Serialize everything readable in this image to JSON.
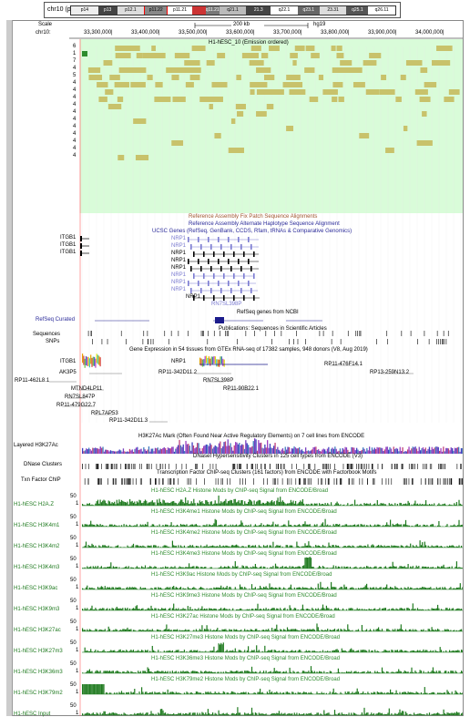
{
  "ideogram": {
    "label": "chr10 (p11.22)",
    "bands": [
      "p14",
      "p13",
      "p12.1",
      "p11.22",
      "p11.21",
      "q11.21",
      "q21.1",
      "21.3",
      "q22.1",
      "q23.1",
      "23.31",
      "q25.1",
      "q26.11"
    ],
    "highlight_band": "p11.22"
  },
  "ruler": {
    "scale_label": "Scale",
    "chrom_label": "chr10:",
    "scale_text": "200 kb",
    "assembly": "hg19",
    "positions": [
      "33,300,000|",
      "33,400,000|",
      "33,500,000|",
      "33,600,000|",
      "33,700,000|",
      "33,800,000|",
      "33,900,000|",
      "34,000,000|"
    ]
  },
  "hmm_track": {
    "title": "H1-hESC_10 (Emission ordered)",
    "state_labels": [
      "6",
      "1",
      "7",
      "4",
      "5",
      "4",
      "4",
      "4",
      "4",
      "4",
      "4",
      "4",
      "4",
      "4",
      "4",
      "4"
    ],
    "background_color": "#d9fcd9",
    "block_color": "#c8c26b"
  },
  "tracks": {
    "fix_patch": "Reference Assembly Fix Patch Sequence Alignments",
    "alt_haplo": "Reference Assembly Alternate Haplotype Sequence Alignment",
    "ucsc_genes": "UCSC Genes (RefSeq, GenBank, CCDS, Rfam, tRNAs & Comparative Genomics)",
    "itgb1_labels": [
      "ITGB1",
      "ITGB1",
      "ITGB1"
    ],
    "nrp1_labels": [
      "NRP1",
      "NRP1",
      "NRP1",
      "NRP1",
      "NRP1",
      "NRP1",
      "NRP1",
      "NRP1",
      "NRP1"
    ],
    "rn7sl398p": "RN7SL398P",
    "refseq_curated": "RefSeq Curated",
    "refseq_title": "RefSeq genes from NCBI",
    "publications": "Publications: Sequences in Scientific Articles",
    "sequences": "Sequences",
    "snps": "SNPs",
    "gtex": "Gene Expression in 54 tissues from GTEx RNA-seq of 17382 samples, 948 donors (V8, Aug 2019)",
    "gtex_genes": [
      "ITGB1",
      "NRP1"
    ],
    "misc_genes": [
      "AK3P5",
      "RP11-342D11.2",
      "RP11-476F14.1",
      "RP13-259N13.2",
      "RP11-462L8.1",
      "RN7SL398P",
      "RP11-90B22.1",
      "MTND4LP11",
      "RN7SL847P",
      "RP11-479G22.7",
      "RPL7AP53",
      "RP11-342D11.3"
    ],
    "layered_h3k27ac": "Layered H3K27Ac",
    "h3k27ac_title": "H3K27Ac Mark (Often Found Near Active Regulatory Elements) on 7 cell lines from ENCODE",
    "dnase": "DNase Clusters",
    "dnase_title": "DNaseI Hypersensitivity Clusters in 125 cell types from ENCODE (V3)",
    "txn": "Txn Factor ChIP",
    "txn_title": "Transcription Factor ChIP-seq Clusters (161 factors) from ENCODE with Factorbook Motifs"
  },
  "histone_tracks": [
    {
      "label": "H1-hESC H2A.Z",
      "title": "H1-hESC H2A.Z Histone Mods by ChIP-seq Signal from ENCODE/Broad"
    },
    {
      "label": "H1-hESC H3K4m1",
      "title": "H1-hESC H3K4me1 Histone Mods by ChIP-seq Signal from ENCODE/Broad"
    },
    {
      "label": "H1-hESC H3K4m2",
      "title": "H1-hESC H3K4me2 Histone Mods by ChIP-seq Signal from ENCODE/Broad"
    },
    {
      "label": "H1-hESC H3K4m3",
      "title": "H1-hESC H3K4me3 Histone Mods by ChIP-seq Signal from ENCODE/Broad"
    },
    {
      "label": "H1-hESC H3K9ac",
      "title": "H1-hESC H3K9ac Histone Mods by ChIP-seq Signal from ENCODE/Broad"
    },
    {
      "label": "H1-hESC H3K9m3",
      "title": "H1-hESC H3K9me3 Histone Mods by ChIP-seq Signal from ENCODE/Broad"
    },
    {
      "label": "H1-hESC H3K27ac",
      "title": "H1-hESC H3K27ac Histone Mods by ChIP-seq Signal from ENCODE/Broad"
    },
    {
      "label": "H1-hESC H3K27m3",
      "title": "H1-hESC H3K27me3 Histone Mods by ChIP-seq Signal from ENCODE/Broad"
    },
    {
      "label": "H1-hESC H3K36m3",
      "title": "H1-hESC H3K36me3 Histone Mods by ChIP-seq Signal from ENCODE/Broad"
    },
    {
      "label": "H1-hESC H3K79m2",
      "title": "H1-hESC H3K79me2 Histone Mods by ChIP-seq Signal from ENCODE/Broad"
    },
    {
      "label": "H1-hESC Input",
      "title": ""
    }
  ],
  "scale_values": {
    "top": "50",
    "bottom": "1"
  },
  "colors": {
    "signal": "#1f7a1f",
    "signal_title": "#2e8b2e",
    "gene_blue": "#1c1c8c",
    "gene_light": "#7b7bd1",
    "red_line": "#ff6666",
    "patch_title": "#a0552d"
  }
}
